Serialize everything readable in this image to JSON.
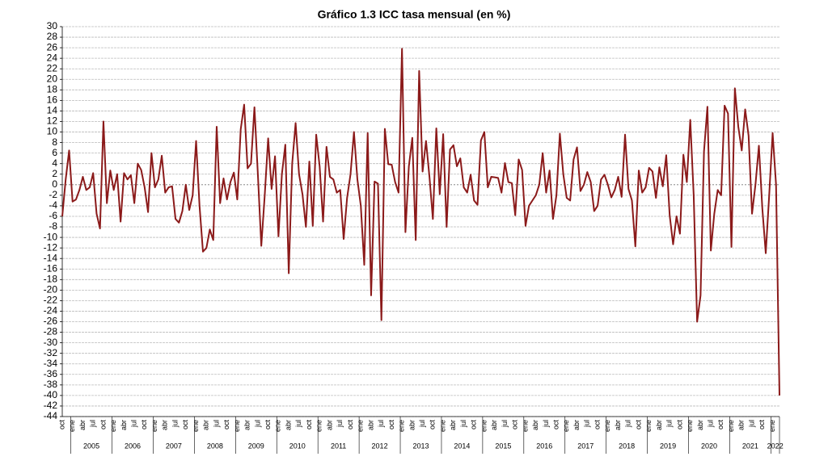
{
  "chart_data": {
    "type": "line",
    "title": "Gráfico 1.3 ICC tasa mensual (en %)",
    "color": "#8b1a1a",
    "categories": [
      "oct",
      null,
      null,
      "ene",
      null,
      null,
      "abr",
      null,
      null,
      "jul",
      null,
      null,
      "oct",
      null,
      null,
      "ene",
      null,
      null,
      "abr",
      null,
      null,
      "jul",
      null,
      null,
      "oct",
      null,
      null,
      "ene",
      null,
      null,
      "abr",
      null,
      null,
      "jul",
      null,
      null,
      "oct",
      null,
      null,
      "ene",
      null,
      null,
      "abr",
      null,
      null,
      "jul",
      null,
      null,
      "oct",
      null,
      null,
      "ene",
      null,
      null,
      "abr",
      null,
      null,
      "jul",
      null,
      null,
      "oct",
      null,
      null,
      "ene",
      null,
      null,
      "abr",
      null,
      null,
      "jul",
      null,
      null,
      "oct",
      null,
      null,
      "ene",
      null,
      null,
      "abr",
      null,
      null,
      "jul",
      null,
      null,
      "oct",
      null,
      null,
      "ene",
      null,
      null,
      "abr",
      null,
      null,
      "jul",
      null,
      null,
      "oct",
      null,
      null,
      "ene",
      null,
      null,
      "abr",
      null,
      null,
      "jul",
      null,
      null,
      "oct",
      null,
      null,
      "ene",
      null,
      null,
      "abr",
      null,
      null,
      "jul",
      null,
      null,
      "oct",
      null,
      null,
      "ene",
      null,
      null,
      "abr",
      null,
      null,
      "jul",
      null,
      null,
      "oct",
      null,
      null,
      "ene",
      null,
      null,
      "abr",
      null,
      null,
      "jul",
      null,
      null,
      "oct",
      null,
      null,
      "ene",
      null,
      null,
      "abr",
      null,
      null,
      "jul",
      null,
      null,
      "oct",
      null,
      null,
      "ene",
      null,
      null,
      "abr",
      null,
      null,
      "jul",
      null,
      null,
      "oct",
      null,
      null,
      "ene",
      null,
      null,
      "abr",
      null,
      null,
      "jul",
      null,
      null,
      "oct",
      null,
      null,
      "ene",
      null,
      null,
      "abr",
      null,
      null,
      "jul",
      null,
      null,
      "oct",
      null,
      null,
      "ene",
      null,
      null,
      "abr",
      null,
      null,
      "jul",
      null,
      null,
      "oct",
      null,
      null,
      "ene",
      null,
      null
    ],
    "years": [
      "2005",
      "2006",
      "2007",
      "2008",
      "2009",
      "2010",
      "2011",
      "2012",
      "2013",
      "2014",
      "2015",
      "2016",
      "2017",
      "2018",
      "2019",
      "2020",
      "2021",
      "2022"
    ],
    "values": [
      -6,
      1,
      6.5,
      -3.2,
      -2.8,
      -1,
      1.5,
      -1,
      -0.5,
      2.2,
      -5.5,
      -8.3,
      12,
      -3.5,
      2.7,
      -1,
      2,
      -7,
      2.2,
      1,
      1.8,
      -3.5,
      4,
      2.8,
      -0.5,
      -5.2,
      6,
      -0.5,
      1,
      5.5,
      -1.5,
      -0.5,
      -0.3,
      -6.5,
      -7.2,
      -5,
      0,
      -4.8,
      -2,
      8.3,
      -4,
      -12.7,
      -12,
      -8.5,
      -10.5,
      11,
      -3.5,
      1.2,
      -2.8,
      0.5,
      2.3,
      -2.8,
      10.5,
      15.2,
      3.1,
      4,
      14.7,
      2,
      -11.6,
      -2,
      8.8,
      -0.8,
      5.4,
      -9.8,
      2,
      7.6,
      -16.8,
      4,
      11.7,
      2,
      -1.8,
      -8,
      4.4,
      -7.8,
      9.5,
      3.5,
      -7,
      7.2,
      1.5,
      1,
      -1.5,
      -1,
      -10.3,
      -2.5,
      2,
      10,
      1,
      -4,
      -15.2,
      9.8,
      -21,
      0.6,
      0.2,
      -25.7,
      10.6,
      3.9,
      3.8,
      0.5,
      -1.5,
      25.8,
      -9,
      3.5,
      8.9,
      -10.5,
      21.6,
      2.5,
      8.3,
      1.5,
      -6.5,
      10.7,
      -1.8,
      9.6,
      -8,
      6.7,
      7.5,
      3.5,
      5,
      -0.5,
      -1.5,
      1.9,
      -3,
      -3.8,
      8.4,
      10,
      -0.5,
      1.5,
      1.4,
      1.3,
      -1.5,
      4.1,
      0.5,
      0.3,
      -5.8,
      4.8,
      2.8,
      -7.8,
      -4,
      -3,
      -2,
      0,
      6,
      -1.5,
      2.7,
      -6.5,
      -2,
      9.7,
      2,
      -2.5,
      -3,
      4.8,
      7.1,
      -1.2,
      0,
      2.4,
      0.5,
      -5,
      -4,
      1,
      1.9,
      0,
      -2.4,
      -1,
      1.5,
      -2.3,
      9.5,
      -0.8,
      -3,
      -11.7,
      2.7,
      -1.5,
      -0.5,
      3.2,
      2.5,
      -2.5,
      3.3,
      -0.3,
      5.6,
      -5.8,
      -11.3,
      -6,
      -9.3,
      5.7,
      0.5,
      12.3,
      -2,
      -26,
      -21,
      6.3,
      14.8,
      -12.5,
      -5.5,
      -1,
      -2,
      15,
      13.5,
      -11.8,
      18.3,
      11,
      6.5,
      14.3,
      9.3,
      -5.5,
      0,
      7.4,
      -4.5,
      -13,
      -2,
      9.8,
      0,
      -40
    ],
    "ylim": [
      -44,
      30
    ],
    "yticks": [
      -44,
      -42,
      -40,
      -38,
      -36,
      -34,
      -32,
      -30,
      -28,
      -26,
      -24,
      -22,
      -20,
      -18,
      -16,
      -14,
      -12,
      -10,
      -8,
      -6,
      -4,
      -2,
      0,
      2,
      4,
      6,
      8,
      10,
      12,
      14,
      16,
      18,
      20,
      22,
      24,
      26,
      28,
      30
    ],
    "grid": true
  }
}
